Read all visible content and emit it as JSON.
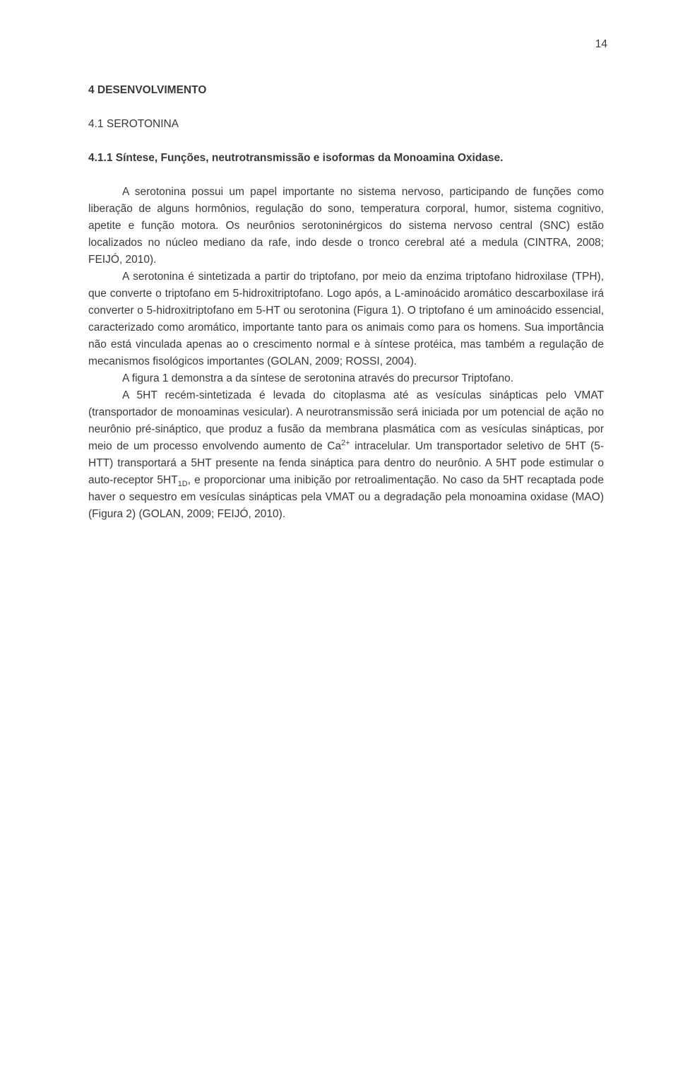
{
  "page_number": "14",
  "background_color": "#ffffff",
  "text_color": "#3a3a3a",
  "font_size_pt": 12,
  "heading1": "4 DESENVOLVIMENTO",
  "heading2": "4.1 SEROTONINA",
  "heading3": "4.1.1 Síntese, Funções, neutrotransmissão e isoformas da Monoamina Oxidase.",
  "paragraphs": {
    "p1": "A serotonina possui um papel importante no sistema nervoso, participando de funções como liberação de alguns hormônios, regulação do sono, temperatura corporal, humor, sistema cognitivo, apetite e função motora. Os neurônios serotoninérgicos do sistema nervoso central (SNC) estão localizados no núcleo mediano da rafe, indo desde o tronco cerebral até a medula (CINTRA, 2008; FEIJÓ, 2010).",
    "p2": "A serotonina é sintetizada a partir do triptofano, por meio da enzima triptofano hidroxilase (TPH), que converte o triptofano em 5-hidroxitriptofano. Logo após, a L-aminoácido aromático descarboxilase irá converter o 5-hidroxitriptofano em 5-HT ou serotonina (Figura 1). O triptofano é um aminoácido essencial, caracterizado como aromático, importante tanto para os animais como para os homens. Sua importância não está vinculada apenas ao o crescimento normal e à síntese protéica, mas também a regulação de mecanismos fisológicos importantes (GOLAN, 2009; ROSSI, 2004).",
    "p3": "A figura 1 demonstra a da síntese de serotonina através do precursor Triptofano.",
    "p4_pre": "A 5HT recém-sintetizada é levada do citoplasma até as vesículas sinápticas pelo VMAT (transportador de monoaminas vesicular). A neurotransmissão será iniciada por um potencial de ação no neurônio pré-sináptico, que produz a fusão da membrana plasmática com as vesículas sinápticas, por meio de um processo envolvendo aumento de Ca",
    "p4_sup": "2+",
    "p4_mid": " intracelular. Um transportador seletivo de 5HT (5-HTT) transportará a 5HT presente na fenda sináptica para dentro do neurônio. A 5HT pode estimular o auto-receptor 5HT",
    "p4_sub": "1D",
    "p4_post": ", e proporcionar uma inibição por retroalimentação. No caso da 5HT recaptada pode haver o sequestro em vesículas sinápticas pela VMAT ou a degradação pela monoamina oxidase (MAO) (Figura 2) (GOLAN, 2009; FEIJÓ, 2010)."
  }
}
